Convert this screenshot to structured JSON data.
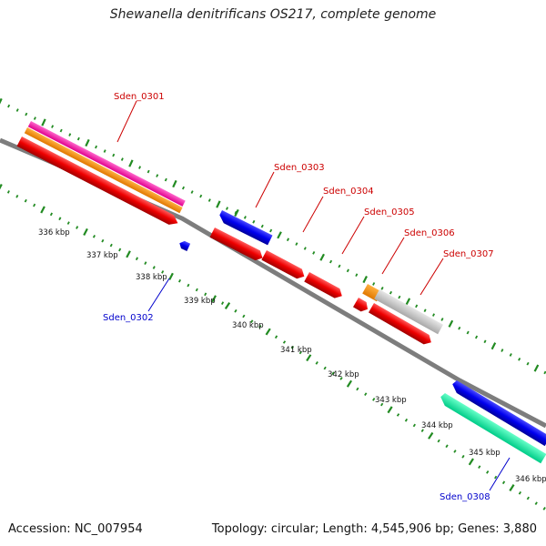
{
  "title": "Shewanella denitrificans OS217, complete genome",
  "footer": {
    "accession": "Accession: NC_007954",
    "summary": "Topology: circular; Length: 4,545,906 bp; Genes: 3,880"
  },
  "colors": {
    "backbone": "#8a8a8a",
    "tick": "#228b22",
    "label_forward": "#cc0000",
    "label_reverse": "#0000cc",
    "label_kbp": "#111111"
  },
  "kbp_labels": [
    "336 kbp",
    "337 kbp",
    "338 kbp",
    "339 kbp",
    "340 kbp",
    "341 kbp",
    "342 kbp",
    "343 kbp",
    "344 kbp",
    "345 kbp",
    "346 kbp"
  ],
  "gene_labels": [
    {
      "id": "s0301",
      "text": "Sden_0301",
      "strand": "forward"
    },
    {
      "id": "s0302",
      "text": "Sden_0302",
      "strand": "reverse"
    },
    {
      "id": "s0303",
      "text": "Sden_0303",
      "strand": "forward"
    },
    {
      "id": "s0304",
      "text": "Sden_0304",
      "strand": "forward"
    },
    {
      "id": "s0305",
      "text": "Sden_0305",
      "strand": "forward"
    },
    {
      "id": "s0306",
      "text": "Sden_0306",
      "strand": "forward"
    },
    {
      "id": "s0307",
      "text": "Sden_0307",
      "strand": "forward"
    },
    {
      "id": "s0308",
      "text": "Sden_0308",
      "strand": "reverse"
    }
  ]
}
